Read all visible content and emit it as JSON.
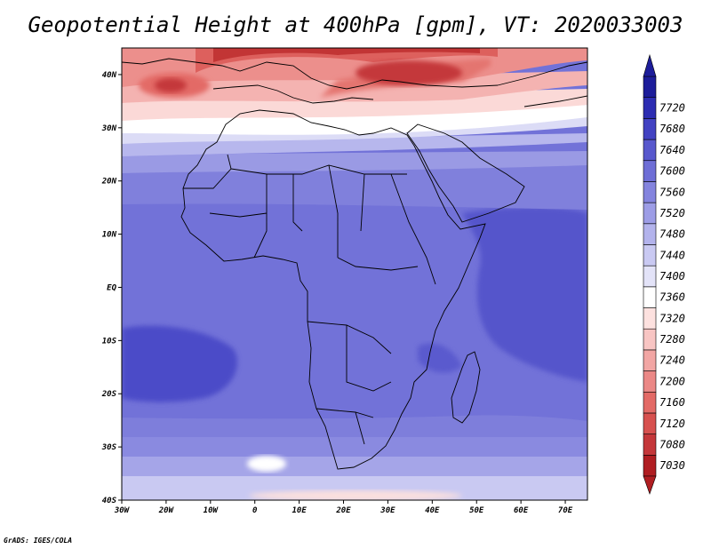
{
  "title": "Geopotential Height at 400hPa [gpm], VT: 2020033003",
  "credit": "GrADS: IGES/COLA",
  "map": {
    "variable": "Geopotential Height",
    "level": "400hPa",
    "units": "gpm",
    "valid_time": "2020033003",
    "lon_range": [
      -30,
      75
    ],
    "lat_range": [
      -40,
      45
    ],
    "lon_ticks": [
      "30W",
      "20W",
      "10W",
      "0",
      "10E",
      "20E",
      "30E",
      "40E",
      "50E",
      "60E",
      "70E"
    ],
    "lon_tick_values": [
      -30,
      -20,
      -10,
      0,
      10,
      20,
      30,
      40,
      50,
      60,
      70
    ],
    "lat_ticks": [
      "40S",
      "30S",
      "20S",
      "10S",
      "EQ",
      "10N",
      "20N",
      "30N",
      "40N"
    ],
    "lat_tick_values": [
      -40,
      -30,
      -20,
      -10,
      0,
      10,
      20,
      30,
      40
    ],
    "coastline_color": "#000000"
  },
  "colorbar": {
    "labels": [
      "7030",
      "7080",
      "7120",
      "7160",
      "7200",
      "7240",
      "7280",
      "7320",
      "7360",
      "7400",
      "7440",
      "7480",
      "7520",
      "7560",
      "7600",
      "7640",
      "7680",
      "7720"
    ],
    "colors": [
      "#b01e22",
      "#c4373a",
      "#d7514f",
      "#e36a66",
      "#eb8886",
      "#f2a6a4",
      "#f8c5c3",
      "#fde1df",
      "#ffffff",
      "#e3e3f8",
      "#c9c9f2",
      "#b3b3ec",
      "#9d9de6",
      "#8484de",
      "#6e6ed6",
      "#5858cd",
      "#4242c2",
      "#2d2db2",
      "#1d1d9a"
    ],
    "low_end_color": "#b01e22",
    "high_end_color": "#1d1d9a"
  }
}
